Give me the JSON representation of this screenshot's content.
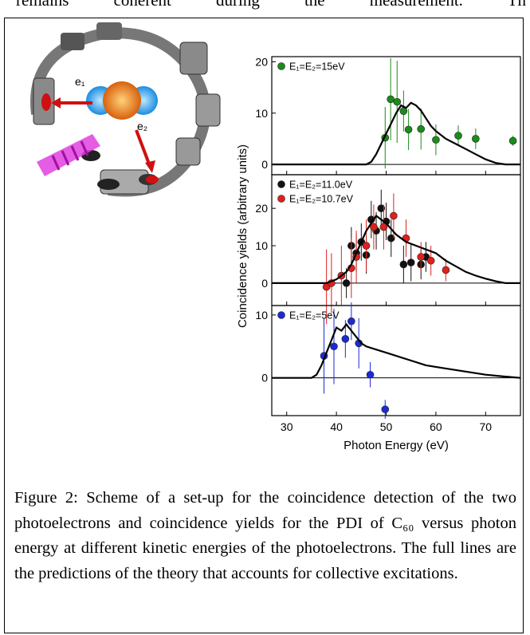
{
  "top_text": "remains coherent during the measurement. Th",
  "illustration": {
    "labels": [
      "e₁",
      "e₂"
    ]
  },
  "caption": "Figure 2: Scheme of a set-up for the coincidence detection of the two photoelectrons and coincidence yields for the PDI of C₆₀ versus photon energy at different kinetic energies of the photoelectrons. The full lines are the predictions of the theory that accounts for collective excitations.",
  "chart_data": [
    {
      "type": "scatter",
      "xlim": [
        27,
        77
      ],
      "ylim": [
        -2,
        21
      ],
      "yticks": [
        0,
        10,
        20
      ],
      "series": [
        {
          "type": "scatter",
          "name": "E₁=E₂=15eV",
          "color": "#1a8c1a",
          "x": [
            49.8,
            50.9,
            52.2,
            53.5,
            54.5,
            57,
            60,
            64.5,
            68,
            75.5
          ],
          "values": [
            5.2,
            12.7,
            12.2,
            10.4,
            6.8,
            6.9,
            4.8,
            5.6,
            5,
            4.6
          ],
          "errors": [
            6,
            8,
            8,
            4,
            4,
            4,
            3,
            2,
            2,
            1
          ]
        },
        {
          "type": "line",
          "color": "#000000",
          "x": [
            27,
            46,
            47,
            48,
            49,
            50,
            51,
            52,
            53,
            54,
            55,
            56,
            57,
            58,
            59,
            60,
            62,
            64,
            66,
            68,
            70,
            72,
            74,
            77
          ],
          "values": [
            0,
            0,
            0.5,
            2,
            4,
            6,
            8,
            10,
            11.5,
            11,
            12,
            11.5,
            10.5,
            9,
            7.5,
            6.5,
            5,
            4,
            3,
            2,
            1,
            0.3,
            0,
            0
          ]
        }
      ]
    },
    {
      "type": "scatter",
      "xlim": [
        27,
        77
      ],
      "ylim": [
        -6,
        29
      ],
      "yticks": [
        0,
        10,
        20
      ],
      "ylabel": "Coincidence yields (arbitrary units)",
      "series": [
        {
          "type": "scatter",
          "name": "E₁=E₂=11.0eV",
          "color": "#111111",
          "x": [
            42,
            43,
            44,
            45,
            46,
            47,
            48,
            49,
            50,
            51,
            53.5,
            55,
            57,
            58
          ],
          "values": [
            0,
            10,
            8,
            11,
            7.5,
            17,
            14,
            20,
            16.5,
            12,
            5,
            5.5,
            5,
            7
          ],
          "errors": [
            4,
            5,
            5,
            5,
            5,
            5,
            5,
            5,
            5,
            5,
            5,
            5,
            4,
            4
          ]
        },
        {
          "type": "scatter",
          "name": "E₁=E₂=10.7eV",
          "color": "#e0201c",
          "x": [
            38,
            39,
            41,
            43,
            44,
            46,
            47.5,
            49.5,
            51.5,
            54,
            57,
            59,
            62
          ],
          "values": [
            -1,
            0,
            2,
            4,
            7,
            10,
            15,
            15,
            18,
            12,
            7,
            6,
            3.5
          ],
          "errors": [
            10,
            8,
            8,
            8,
            7,
            7,
            6,
            6,
            6,
            5,
            4,
            4,
            3
          ]
        },
        {
          "type": "line",
          "color": "#000000",
          "x": [
            27,
            38,
            40,
            42,
            43,
            44,
            45,
            46,
            47,
            48,
            49,
            50,
            52,
            54,
            56,
            58,
            60,
            62,
            64,
            66,
            68,
            70,
            72,
            74,
            77
          ],
          "values": [
            0,
            0,
            1,
            3,
            5,
            8,
            11,
            14,
            16,
            18,
            17,
            16,
            13,
            11,
            10,
            9,
            8,
            6,
            4.5,
            3,
            2,
            1.2,
            0.5,
            0,
            0
          ]
        }
      ]
    },
    {
      "type": "scatter",
      "xlim": [
        27,
        77
      ],
      "ylim": [
        -6,
        11.5
      ],
      "yticks": [
        0,
        10
      ],
      "xticks": [
        30,
        40,
        50,
        60,
        70
      ],
      "xlabel": "Photon Energy (eV)",
      "series": [
        {
          "type": "scatter",
          "name": "E₁=E₂=5eV",
          "color": "#1c2ad6",
          "x": [
            37.5,
            39.5,
            41.8,
            43,
            44.5,
            46.8,
            49.8
          ],
          "values": [
            3.5,
            5,
            6.2,
            9,
            5.5,
            0.5,
            -5
          ],
          "errors": [
            6,
            6,
            3,
            3,
            4,
            2,
            1.5
          ]
        },
        {
          "type": "line",
          "color": "#000000",
          "x": [
            27,
            35,
            36,
            37,
            38,
            39,
            40,
            41,
            42,
            43,
            44,
            45,
            46,
            48,
            50,
            54,
            58,
            62,
            66,
            70,
            74,
            77
          ],
          "values": [
            0,
            0,
            0.5,
            2,
            4,
            6,
            8,
            7.5,
            8.5,
            7.5,
            6.5,
            5.5,
            5,
            4.5,
            4,
            3,
            2,
            1.5,
            1,
            0.5,
            0.2,
            0
          ]
        }
      ]
    }
  ]
}
